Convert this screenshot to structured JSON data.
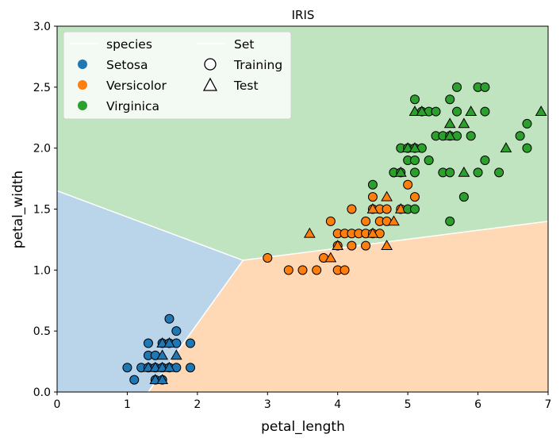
{
  "chart_data": {
    "type": "scatter",
    "title": "IRIS",
    "xlabel": "petal_length",
    "ylabel": "petal_width",
    "xlim": [
      0,
      7
    ],
    "ylim": [
      0,
      3
    ],
    "xticks": [
      "0",
      "1",
      "2",
      "3",
      "4",
      "5",
      "6",
      "7"
    ],
    "yticks": [
      "0.0",
      "0.5",
      "1.0",
      "1.5",
      "2.0",
      "2.5",
      "3.0"
    ],
    "grid": false,
    "legend": {
      "placement": "top-left",
      "species_title": "species",
      "set_title": "Set",
      "species": [
        "Setosa",
        "Versicolor",
        "Virginica"
      ],
      "sets": [
        "Training",
        "Test"
      ]
    },
    "colors": {
      "Setosa": "#1f77b4",
      "Versicolor": "#ff7f0e",
      "Virginica": "#2ca02c",
      "region_setosa": "#bad5ea",
      "region_versicolor": "#ffd8b5",
      "region_virginica": "#c0e3c0"
    },
    "decision_regions": [
      {
        "species": "Setosa",
        "polygon": [
          [
            0,
            0
          ],
          [
            1.3,
            0
          ],
          [
            2.65,
            1.08
          ],
          [
            0,
            1.65
          ]
        ]
      },
      {
        "species": "Versicolor",
        "polygon": [
          [
            1.3,
            0
          ],
          [
            7,
            0
          ],
          [
            7,
            1.4
          ],
          [
            2.65,
            1.08
          ]
        ]
      },
      {
        "species": "Virginica",
        "polygon": [
          [
            0,
            1.65
          ],
          [
            2.65,
            1.08
          ],
          [
            7,
            1.4
          ],
          [
            7,
            3
          ],
          [
            0,
            3
          ]
        ]
      }
    ],
    "boundaries": [
      [
        [
          0,
          1.65
        ],
        [
          2.65,
          1.08
        ]
      ],
      [
        [
          1.3,
          0
        ],
        [
          2.65,
          1.08
        ]
      ],
      [
        [
          2.65,
          1.08
        ],
        [
          7,
          1.4
        ]
      ]
    ],
    "series": [
      {
        "name": "Setosa",
        "set": "Training",
        "points": [
          [
            1.0,
            0.2
          ],
          [
            1.1,
            0.1
          ],
          [
            1.2,
            0.2
          ],
          [
            1.3,
            0.2
          ],
          [
            1.3,
            0.3
          ],
          [
            1.3,
            0.4
          ],
          [
            1.4,
            0.1
          ],
          [
            1.4,
            0.2
          ],
          [
            1.4,
            0.3
          ],
          [
            1.5,
            0.1
          ],
          [
            1.5,
            0.2
          ],
          [
            1.5,
            0.4
          ],
          [
            1.6,
            0.2
          ],
          [
            1.6,
            0.4
          ],
          [
            1.6,
            0.6
          ],
          [
            1.7,
            0.2
          ],
          [
            1.7,
            0.4
          ],
          [
            1.7,
            0.5
          ],
          [
            1.9,
            0.2
          ],
          [
            1.9,
            0.4
          ]
        ]
      },
      {
        "name": "Setosa",
        "set": "Test",
        "points": [
          [
            1.3,
            0.2
          ],
          [
            1.4,
            0.2
          ],
          [
            1.4,
            0.1
          ],
          [
            1.5,
            0.2
          ],
          [
            1.5,
            0.1
          ],
          [
            1.5,
            0.3
          ],
          [
            1.5,
            0.4
          ],
          [
            1.6,
            0.2
          ],
          [
            1.6,
            0.4
          ],
          [
            1.7,
            0.3
          ]
        ]
      },
      {
        "name": "Versicolor",
        "set": "Training",
        "points": [
          [
            3.0,
            1.1
          ],
          [
            3.3,
            1.0
          ],
          [
            3.5,
            1.0
          ],
          [
            3.7,
            1.0
          ],
          [
            3.8,
            1.1
          ],
          [
            3.9,
            1.4
          ],
          [
            4.0,
            1.0
          ],
          [
            4.0,
            1.2
          ],
          [
            4.0,
            1.3
          ],
          [
            4.1,
            1.0
          ],
          [
            4.1,
            1.3
          ],
          [
            4.2,
            1.2
          ],
          [
            4.2,
            1.3
          ],
          [
            4.2,
            1.5
          ],
          [
            4.3,
            1.3
          ],
          [
            4.4,
            1.2
          ],
          [
            4.4,
            1.3
          ],
          [
            4.4,
            1.4
          ],
          [
            4.5,
            1.3
          ],
          [
            4.5,
            1.5
          ],
          [
            4.5,
            1.6
          ],
          [
            4.6,
            1.3
          ],
          [
            4.6,
            1.4
          ],
          [
            4.6,
            1.5
          ],
          [
            4.7,
            1.4
          ],
          [
            4.7,
            1.5
          ],
          [
            4.8,
            1.8
          ],
          [
            4.9,
            1.5
          ],
          [
            5.0,
            1.7
          ],
          [
            5.1,
            1.6
          ]
        ]
      },
      {
        "name": "Versicolor",
        "set": "Test",
        "points": [
          [
            3.6,
            1.3
          ],
          [
            3.9,
            1.1
          ],
          [
            4.0,
            1.2
          ],
          [
            4.5,
            1.3
          ],
          [
            4.5,
            1.5
          ],
          [
            4.7,
            1.6
          ],
          [
            4.7,
            1.2
          ],
          [
            4.8,
            1.4
          ],
          [
            4.9,
            1.5
          ]
        ]
      },
      {
        "name": "Virginica",
        "set": "Training",
        "points": [
          [
            4.5,
            1.7
          ],
          [
            4.8,
            1.8
          ],
          [
            4.9,
            1.8
          ],
          [
            4.9,
            2.0
          ],
          [
            5.0,
            1.5
          ],
          [
            5.0,
            1.9
          ],
          [
            5.0,
            2.0
          ],
          [
            5.1,
            1.5
          ],
          [
            5.1,
            1.8
          ],
          [
            5.1,
            1.9
          ],
          [
            5.1,
            2.0
          ],
          [
            5.1,
            2.4
          ],
          [
            5.2,
            2.0
          ],
          [
            5.2,
            2.3
          ],
          [
            5.3,
            1.9
          ],
          [
            5.3,
            2.3
          ],
          [
            5.4,
            2.1
          ],
          [
            5.4,
            2.3
          ],
          [
            5.5,
            1.8
          ],
          [
            5.5,
            2.1
          ],
          [
            5.6,
            1.4
          ],
          [
            5.6,
            1.8
          ],
          [
            5.6,
            2.1
          ],
          [
            5.6,
            2.4
          ],
          [
            5.7,
            2.1
          ],
          [
            5.7,
            2.3
          ],
          [
            5.7,
            2.5
          ],
          [
            5.8,
            1.6
          ],
          [
            5.9,
            2.1
          ],
          [
            6.0,
            1.8
          ],
          [
            6.0,
            2.5
          ],
          [
            6.1,
            1.9
          ],
          [
            6.1,
            2.3
          ],
          [
            6.1,
            2.5
          ],
          [
            6.3,
            1.8
          ],
          [
            6.6,
            2.1
          ],
          [
            6.7,
            2.0
          ],
          [
            6.7,
            2.2
          ]
        ]
      },
      {
        "name": "Virginica",
        "set": "Test",
        "points": [
          [
            4.9,
            1.8
          ],
          [
            5.0,
            2.0
          ],
          [
            5.1,
            2.3
          ],
          [
            5.1,
            2.0
          ],
          [
            5.2,
            2.3
          ],
          [
            5.6,
            2.2
          ],
          [
            5.6,
            2.1
          ],
          [
            5.8,
            1.8
          ],
          [
            5.8,
            2.2
          ],
          [
            5.9,
            2.3
          ],
          [
            6.4,
            2.0
          ],
          [
            6.9,
            2.3
          ]
        ]
      }
    ]
  }
}
